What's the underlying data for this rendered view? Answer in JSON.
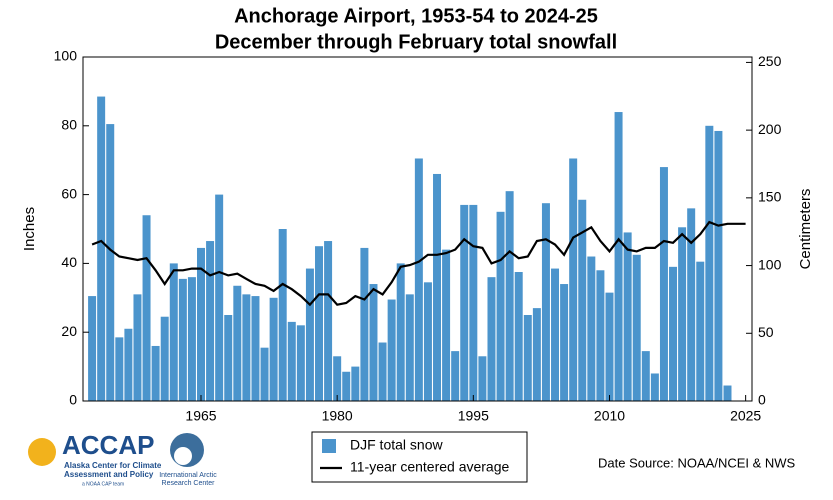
{
  "chart_data": {
    "type": "bar",
    "title": "Anchorage Airport, 1953-54 to 2024-25",
    "subtitle": "December through February total snowfall",
    "y_label": "Inches",
    "y2_label": "Centimeters",
    "source": "Date Source: NOAA/NCEI & NWS",
    "x": [
      1953,
      1954,
      1955,
      1956,
      1957,
      1958,
      1959,
      1960,
      1961,
      1962,
      1963,
      1964,
      1965,
      1966,
      1967,
      1968,
      1969,
      1970,
      1971,
      1972,
      1973,
      1974,
      1975,
      1976,
      1977,
      1978,
      1979,
      1980,
      1981,
      1982,
      1983,
      1984,
      1985,
      1986,
      1987,
      1988,
      1989,
      1990,
      1991,
      1992,
      1993,
      1994,
      1995,
      1996,
      1997,
      1998,
      1999,
      2000,
      2001,
      2002,
      2003,
      2004,
      2005,
      2006,
      2007,
      2008,
      2009,
      2010,
      2011,
      2012,
      2013,
      2014,
      2015,
      2016,
      2017,
      2018,
      2019,
      2020,
      2021,
      2022,
      2023,
      2024,
      2025
    ],
    "series": [
      {
        "name": "DJF total snow",
        "type": "bar",
        "color": "#4b94cc",
        "values": [
          30.5,
          88.5,
          80.5,
          18.5,
          21,
          31,
          54,
          16,
          24.5,
          40,
          35.5,
          36,
          44.5,
          46.5,
          60,
          25,
          33.5,
          31,
          30.5,
          15.5,
          30,
          50,
          23,
          22,
          38.5,
          45,
          46.5,
          13,
          8.5,
          10,
          44.5,
          34,
          17,
          29.5,
          40,
          31,
          70.5,
          34.5,
          66,
          44,
          14.5,
          57,
          57,
          13,
          36,
          55,
          61,
          37.5,
          25,
          27,
          57.5,
          38.5,
          34,
          70.5,
          58.5,
          42,
          38,
          31.5,
          84,
          49,
          42.5,
          14.5,
          8,
          68,
          39,
          50.5,
          56,
          40.5,
          80,
          78.5,
          4.5,
          null,
          null
        ]
      },
      {
        "name": "11-year centered average",
        "type": "line",
        "color": "#000000",
        "values": [
          45.5,
          46.5,
          44,
          42,
          41.5,
          41,
          41.5,
          38,
          34,
          38,
          38,
          38.5,
          38.5,
          36.5,
          37.5,
          36.5,
          37,
          35.5,
          34,
          33.5,
          32,
          34,
          32.5,
          30.5,
          28,
          31,
          31,
          28,
          28.5,
          30.5,
          29.5,
          32.5,
          31,
          34.5,
          39,
          39.5,
          40.5,
          42.5,
          42.5,
          43,
          44,
          47,
          45,
          44.5,
          40,
          41,
          43.5,
          41.5,
          42,
          46.5,
          47,
          45.5,
          42.5,
          47.5,
          49,
          50.5,
          46.5,
          43.5,
          47,
          44,
          43.5,
          44.5,
          44.5,
          46.5,
          46,
          48.5,
          46,
          48.5,
          52,
          51,
          51.5,
          51.5,
          51.5
        ]
      }
    ],
    "xlim": [
      1952,
      2025.7
    ],
    "xticks": [
      1965,
      1980,
      1995,
      2010,
      2025
    ],
    "ylim": [
      0,
      100
    ],
    "yticks": [
      0,
      20,
      40,
      60,
      80,
      100
    ],
    "y2lim": [
      0,
      254
    ],
    "y2ticks": [
      0,
      50,
      100,
      150,
      200,
      250
    ]
  },
  "logos": {
    "accap": "ACCAP",
    "accap_line1": "Alaska Center for Climate",
    "accap_line2": "Assessment and Policy",
    "accap_tag": "a NOAA CAP team",
    "iarc_line1": "International Arctic",
    "iarc_line2": "Research Center"
  }
}
